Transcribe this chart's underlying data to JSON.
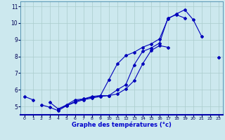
{
  "xlabel": "Graphe des températures (°c)",
  "bg_color": "#cce8ee",
  "grid_color": "#aacccc",
  "line_color": "#0000bb",
  "hours": [
    0,
    1,
    2,
    3,
    4,
    5,
    6,
    7,
    8,
    9,
    10,
    11,
    12,
    13,
    14,
    15,
    16,
    17,
    18,
    19,
    20,
    21,
    22,
    23
  ],
  "line1": [
    5.6,
    5.4,
    null,
    5.25,
    4.85,
    5.05,
    5.25,
    5.4,
    5.5,
    5.6,
    5.65,
    6.0,
    6.3,
    7.5,
    8.3,
    8.5,
    8.8,
    10.3,
    10.5,
    10.3,
    null,
    null,
    null,
    null
  ],
  "line2": [
    null,
    null,
    5.1,
    4.95,
    4.75,
    5.05,
    5.3,
    5.45,
    5.55,
    5.65,
    5.65,
    5.75,
    6.05,
    6.55,
    7.55,
    8.35,
    8.65,
    8.55,
    null,
    null,
    null,
    null,
    null,
    null
  ],
  "line3": [
    null,
    null,
    null,
    null,
    4.85,
    5.1,
    5.4,
    5.45,
    5.6,
    5.65,
    6.6,
    7.55,
    8.05,
    8.25,
    8.55,
    8.75,
    9.05,
    10.25,
    10.55,
    10.8,
    10.2,
    9.2,
    null,
    7.95
  ],
  "ylim": [
    4.5,
    11.3
  ],
  "xlim": [
    -0.5,
    23.5
  ],
  "yticks": [
    5,
    6,
    7,
    8,
    9,
    10,
    11
  ],
  "xticks": [
    0,
    1,
    2,
    3,
    4,
    5,
    6,
    7,
    8,
    9,
    10,
    11,
    12,
    13,
    14,
    15,
    16,
    17,
    18,
    19,
    20,
    21,
    22,
    23
  ],
  "xlabel_fontsize": 6.0,
  "xlabel_color": "#0000cc",
  "tick_fontsize": 4.5,
  "ytick_fontsize": 5.5,
  "marker_size": 2.0,
  "line_width": 0.8
}
